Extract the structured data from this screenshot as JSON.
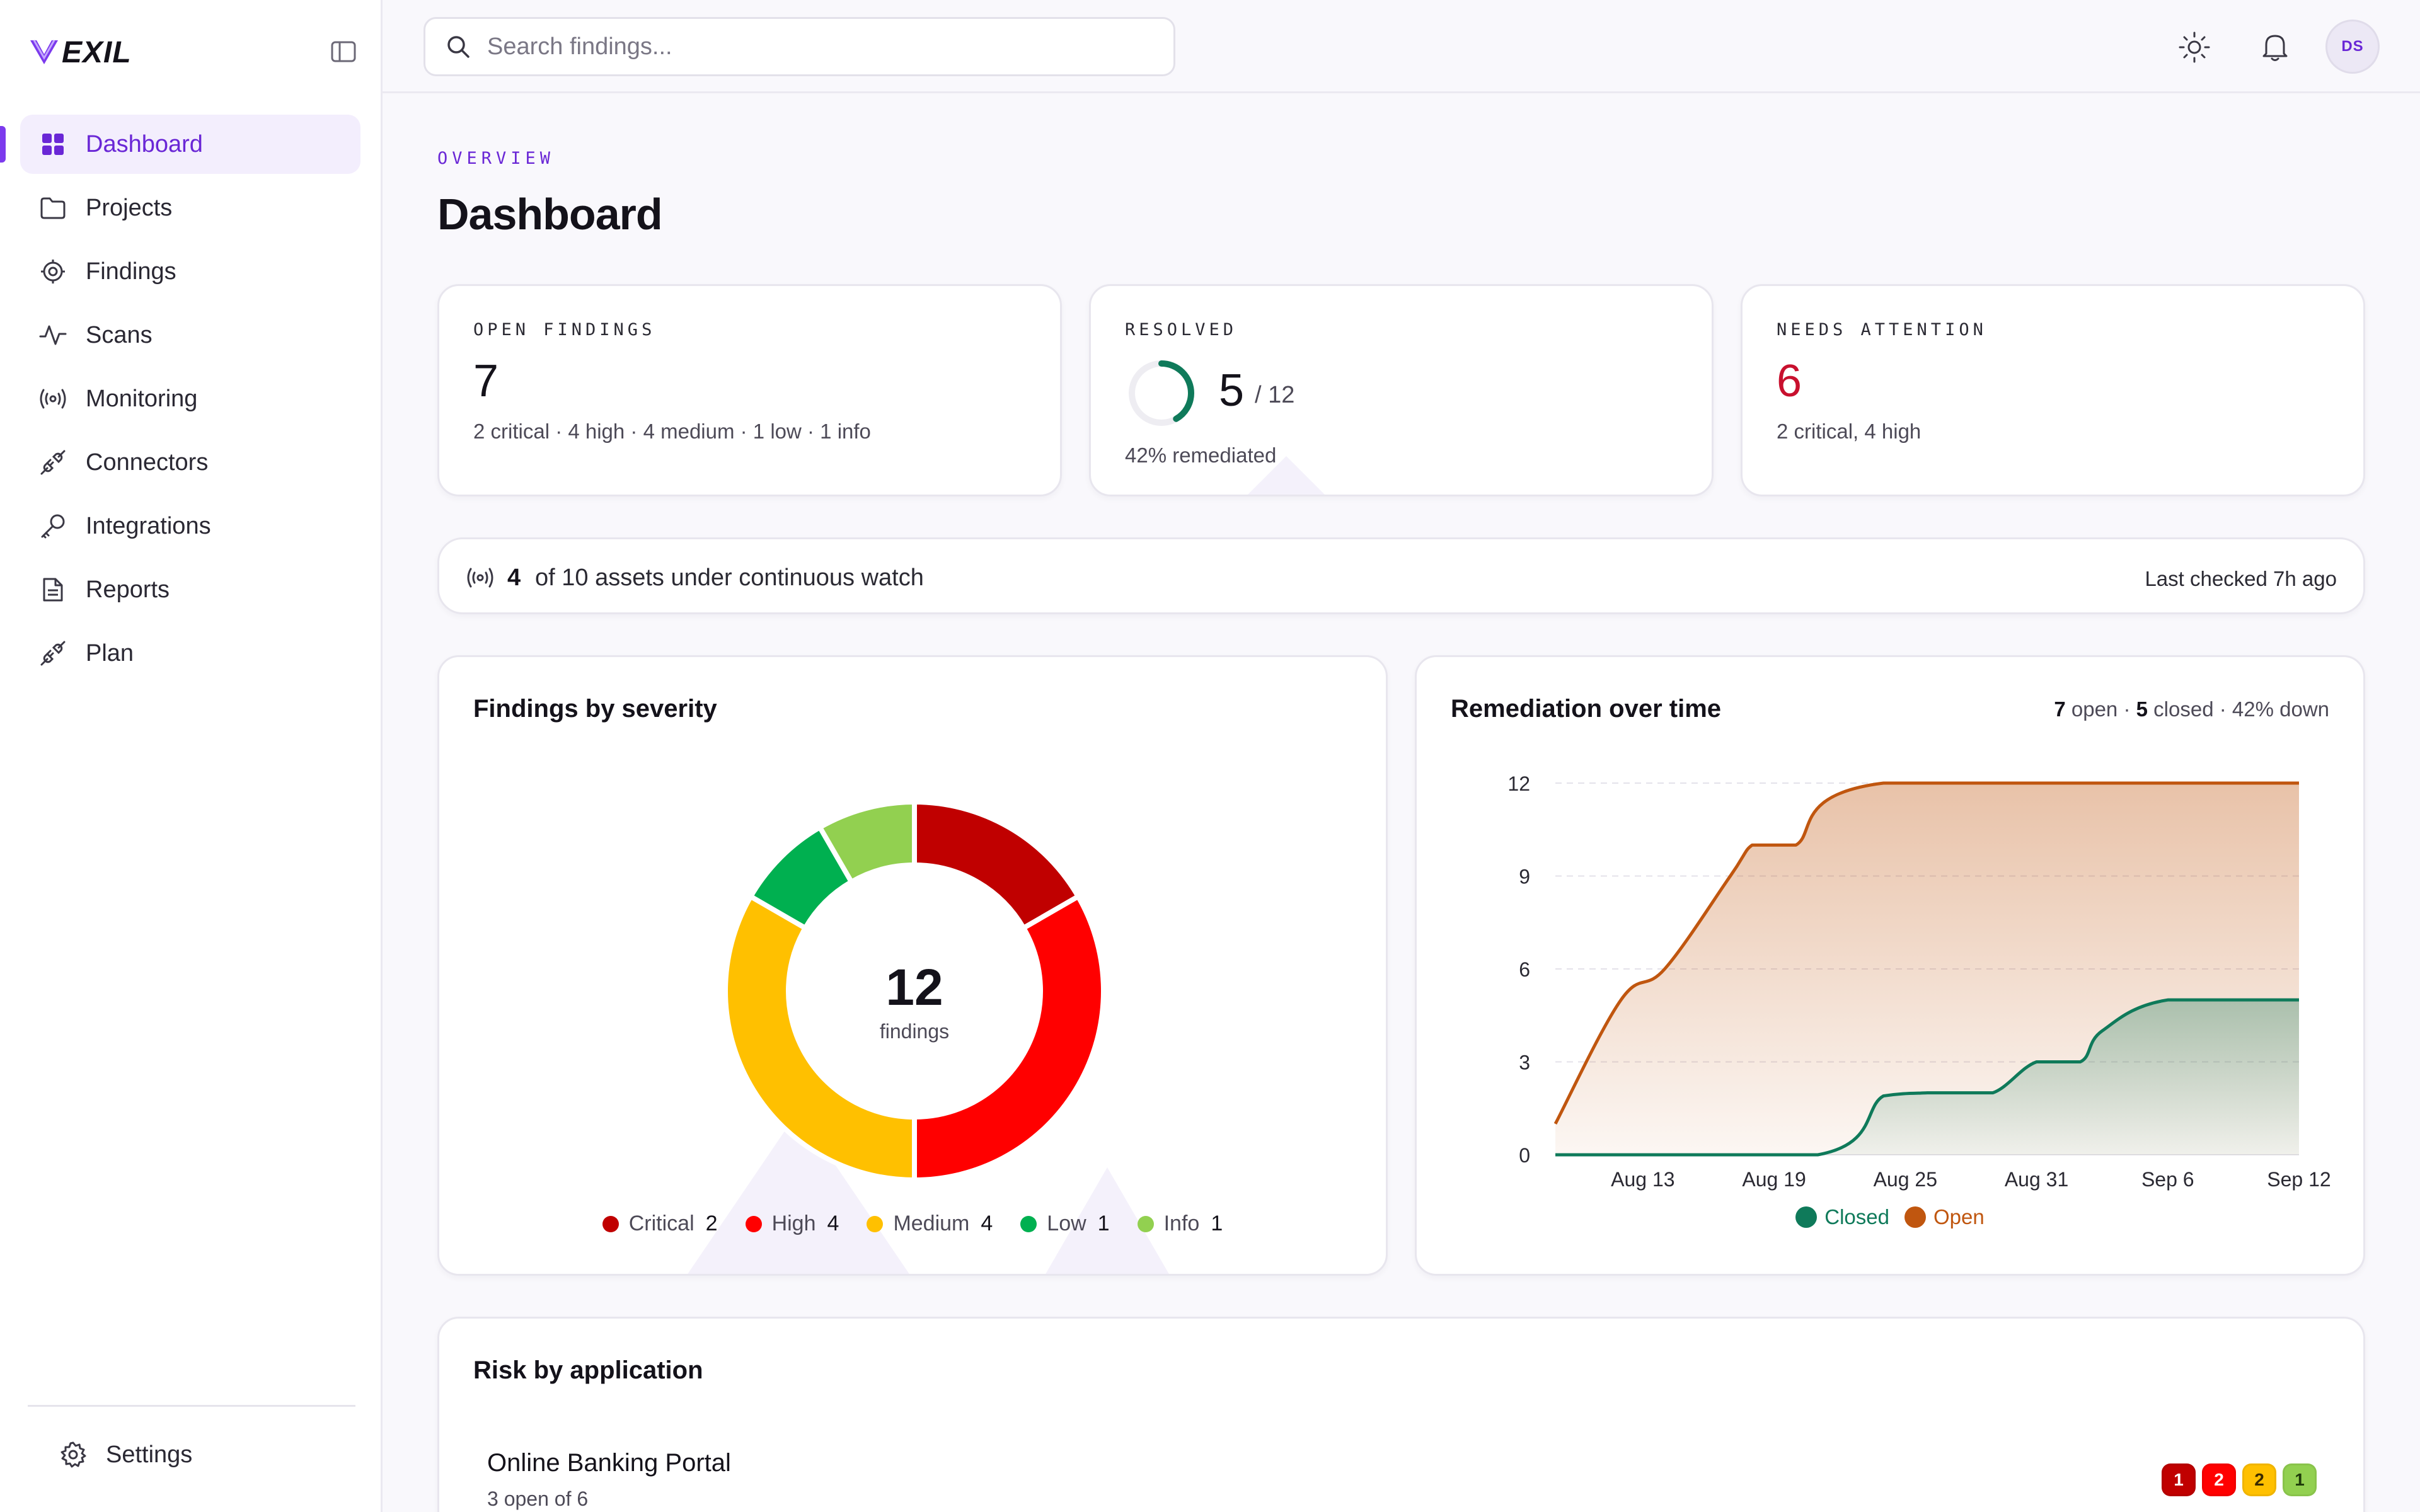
{
  "brand": {
    "logo_text": "EXIL",
    "accent": "#7c3aed"
  },
  "sidebar": {
    "items": [
      {
        "label": "Dashboard",
        "icon": "grid-icon",
        "active": true
      },
      {
        "label": "Projects",
        "icon": "folder-icon"
      },
      {
        "label": "Findings",
        "icon": "target-icon"
      },
      {
        "label": "Scans",
        "icon": "activity-icon"
      },
      {
        "label": "Monitoring",
        "icon": "radio-icon"
      },
      {
        "label": "Connectors",
        "icon": "plug-icon"
      },
      {
        "label": "Integrations",
        "icon": "key-icon"
      },
      {
        "label": "Reports",
        "icon": "file-text-icon"
      },
      {
        "label": "Plan",
        "icon": "plug-icon"
      }
    ],
    "settings_label": "Settings"
  },
  "topbar": {
    "search_placeholder": "Search findings...",
    "avatar_initials": "DS"
  },
  "header": {
    "eyebrow": "OVERVIEW",
    "title": "Dashboard"
  },
  "stats": {
    "open": {
      "label": "OPEN FINDINGS",
      "value": "7",
      "sub": "2 critical · 4 high · 4 medium · 1 low · 1 info"
    },
    "resolved": {
      "label": "RESOLVED",
      "value": "5",
      "total": "/ 12",
      "fraction": 0.4167,
      "sub": "42% remediated",
      "ring_color": "#0f7a5a"
    },
    "attention": {
      "label": "NEEDS ATTENTION",
      "value": "6",
      "sub": "2 critical, 4 high",
      "color": "#c8102e"
    }
  },
  "watch": {
    "count": "4",
    "text": "of 10 assets under continuous watch",
    "last_checked": "Last checked 7h ago"
  },
  "severity_card": {
    "title": "Findings by severity",
    "center_value": "12",
    "center_label": "findings",
    "legend": [
      {
        "label": "Critical",
        "count": "2",
        "color": "#c00000"
      },
      {
        "label": "High",
        "count": "4",
        "color": "#ff0000"
      },
      {
        "label": "Medium",
        "count": "4",
        "color": "#ffc000"
      },
      {
        "label": "Low",
        "count": "1",
        "color": "#00b050"
      },
      {
        "label": "Info",
        "count": "1",
        "color": "#92d050"
      }
    ]
  },
  "remediation_card": {
    "title": "Remediation over time",
    "open_count": "7",
    "open_word": "open",
    "closed_count": "5",
    "closed_word": "closed",
    "down_text": "42% down",
    "legend": [
      {
        "label": "Closed",
        "color": "#0f7a5a"
      },
      {
        "label": "Open",
        "color": "#c0560f"
      }
    ]
  },
  "risk_card": {
    "title": "Risk by application",
    "rows": [
      {
        "name": "Online Banking Portal",
        "sub": "3 open of 6",
        "badges": [
          {
            "value": "1",
            "bg": "#c00000",
            "fg": "#ffffff"
          },
          {
            "value": "2",
            "bg": "#ff0000",
            "fg": "#ffffff"
          },
          {
            "value": "2",
            "bg": "#ffc000",
            "fg": "#3a2a00"
          },
          {
            "value": "1",
            "bg": "#92d050",
            "fg": "#1e3a0a"
          }
        ]
      }
    ]
  },
  "chart_data": [
    {
      "type": "pie",
      "variant": "donut",
      "title": "Findings by severity",
      "categories": [
        "Critical",
        "High",
        "Medium",
        "Low",
        "Info"
      ],
      "values": [
        2,
        4,
        4,
        1,
        1
      ],
      "colors": [
        "#c00000",
        "#ff0000",
        "#ffc000",
        "#00b050",
        "#92d050"
      ],
      "legend": "bottom"
    },
    {
      "type": "area",
      "title": "Remediation over time",
      "x_ticks": [
        "Aug 13",
        "Aug 19",
        "Aug 25",
        "Aug 31",
        "Sep 6",
        "Sep 12"
      ],
      "x_range": [
        "Aug 9",
        "Sep 12"
      ],
      "y_ticks": [
        0,
        3,
        6,
        9,
        12
      ],
      "ylim": [
        0,
        12
      ],
      "grid": "horizontal-dashed",
      "legend": "bottom",
      "series": [
        {
          "name": "Open",
          "color": "#c0560f",
          "x": [
            "Aug 9",
            "Aug 12",
            "Aug 14",
            "Aug 17",
            "Aug 18",
            "Aug 19",
            "Aug 20",
            "Aug 24",
            "Sep 12"
          ],
          "y": [
            1,
            5,
            6,
            9,
            10,
            10,
            10,
            12,
            12
          ]
        },
        {
          "name": "Closed",
          "color": "#0f7a5a",
          "x": [
            "Aug 9",
            "Aug 21",
            "Aug 24",
            "Aug 26",
            "Aug 27",
            "Aug 29",
            "Aug 31",
            "Sep 2",
            "Sep 3",
            "Sep 6",
            "Sep 12"
          ],
          "y": [
            0,
            0,
            1.9,
            2,
            2,
            2,
            3,
            3,
            4,
            5,
            5
          ]
        }
      ]
    }
  ]
}
